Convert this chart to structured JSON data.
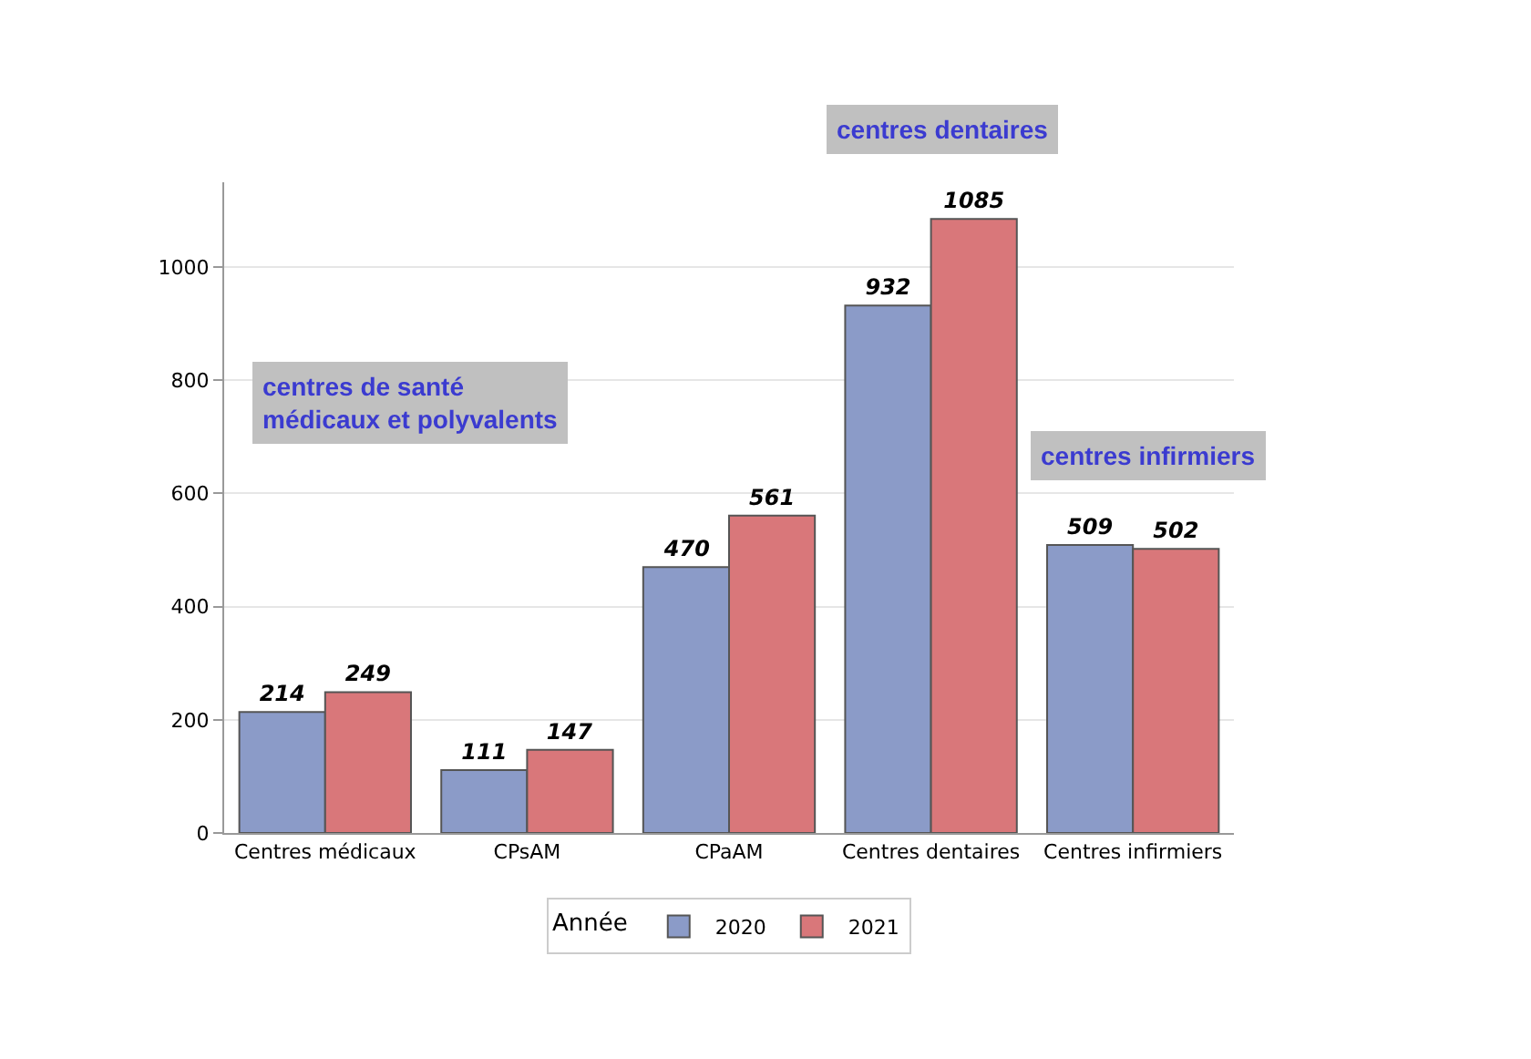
{
  "chart_data": {
    "type": "bar",
    "categories": [
      "Centres médicaux",
      "CPsAM",
      "CPaAM",
      "Centres dentaires",
      "Centres infirmiers"
    ],
    "series": [
      {
        "name": "2020",
        "color": "#8b9bc8",
        "values": [
          214,
          111,
          470,
          932,
          509
        ]
      },
      {
        "name": "2021",
        "color": "#d9777a",
        "values": [
          249,
          147,
          561,
          1085,
          502
        ]
      }
    ],
    "legend_title": "Année",
    "legend": "bottom",
    "ylim": [
      0,
      1150
    ],
    "yticks": [
      0,
      200,
      400,
      600,
      800,
      1000
    ],
    "grid": "y",
    "data_labels": true,
    "annotations": [
      "centres de santé\nmédicaux et polyvalents",
      "centres dentaires",
      "centres infirmiers"
    ]
  }
}
